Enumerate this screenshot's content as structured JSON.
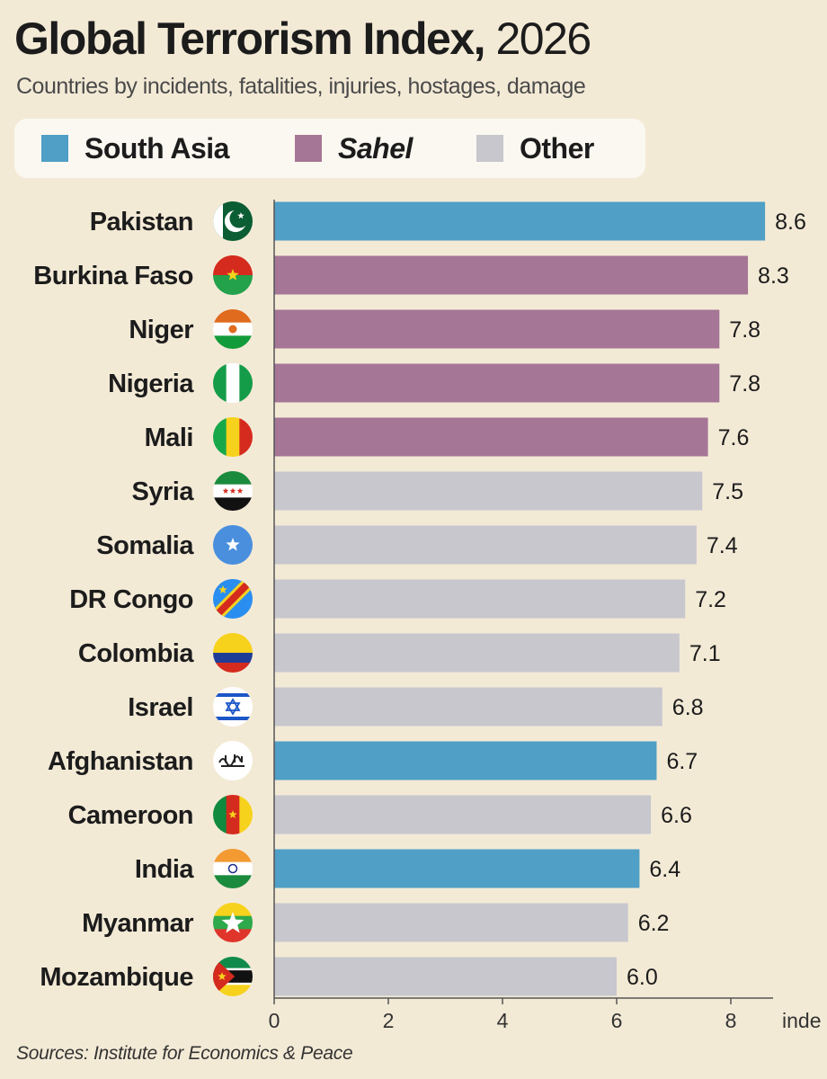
{
  "header": {
    "title_main": "Global Terrorism Index,",
    "title_year": "2026",
    "subtitle": "Countries by incidents, fatalities, injuries, hostages, damage"
  },
  "legend": [
    {
      "label": "South Asia",
      "color": "#4f9fc6",
      "italic": false
    },
    {
      "label": "Sahel",
      "color": "#a57696",
      "italic": true
    },
    {
      "label": "Other",
      "color": "#c7c7cd",
      "italic": false
    }
  ],
  "colors": {
    "South Asia": "#4f9fc6",
    "Sahel": "#a57696",
    "Other": "#c7c7cd"
  },
  "chart_data": {
    "type": "bar",
    "orientation": "horizontal",
    "categories": [
      "Pakistan",
      "Burkina Faso",
      "Niger",
      "Nigeria",
      "Mali",
      "Syria",
      "Somalia",
      "DR Congo",
      "Colombia",
      "Israel",
      "Afghanistan",
      "Cameroon",
      "India",
      "Myanmar",
      "Mozambique"
    ],
    "values": [
      8.6,
      8.3,
      7.8,
      7.8,
      7.6,
      7.5,
      7.4,
      7.2,
      7.1,
      6.8,
      6.7,
      6.6,
      6.4,
      6.2,
      6.0
    ],
    "value_labels": [
      "8.6",
      "8.3",
      "7.8",
      "7.8",
      "7.6",
      "7.5",
      "7.4",
      "7.2",
      "7.1",
      "6.8",
      "6.7",
      "6.6",
      "6.4",
      "6.2",
      "6.0"
    ],
    "groups": [
      "South Asia",
      "Sahel",
      "Sahel",
      "Sahel",
      "Sahel",
      "Other",
      "Other",
      "Other",
      "Other",
      "Other",
      "South Asia",
      "Other",
      "South Asia",
      "Other",
      "Other"
    ],
    "flags": [
      "pakistan-flag-icon",
      "burkina-faso-flag-icon",
      "niger-flag-icon",
      "nigeria-flag-icon",
      "mali-flag-icon",
      "syria-flag-icon",
      "somalia-flag-icon",
      "dr-congo-flag-icon",
      "colombia-flag-icon",
      "israel-flag-icon",
      "afghanistan-flag-icon",
      "cameroon-flag-icon",
      "india-flag-icon",
      "myanmar-flag-icon",
      "mozambique-flag-icon"
    ],
    "xticks": [
      "0",
      "2",
      "4",
      "6",
      "8"
    ],
    "xlabel": "inde",
    "xlim": [
      0,
      8.6
    ],
    "grid": false,
    "legend_position": "top"
  },
  "footer": {
    "sources": "Sources: Institute for Economics & Peace"
  }
}
